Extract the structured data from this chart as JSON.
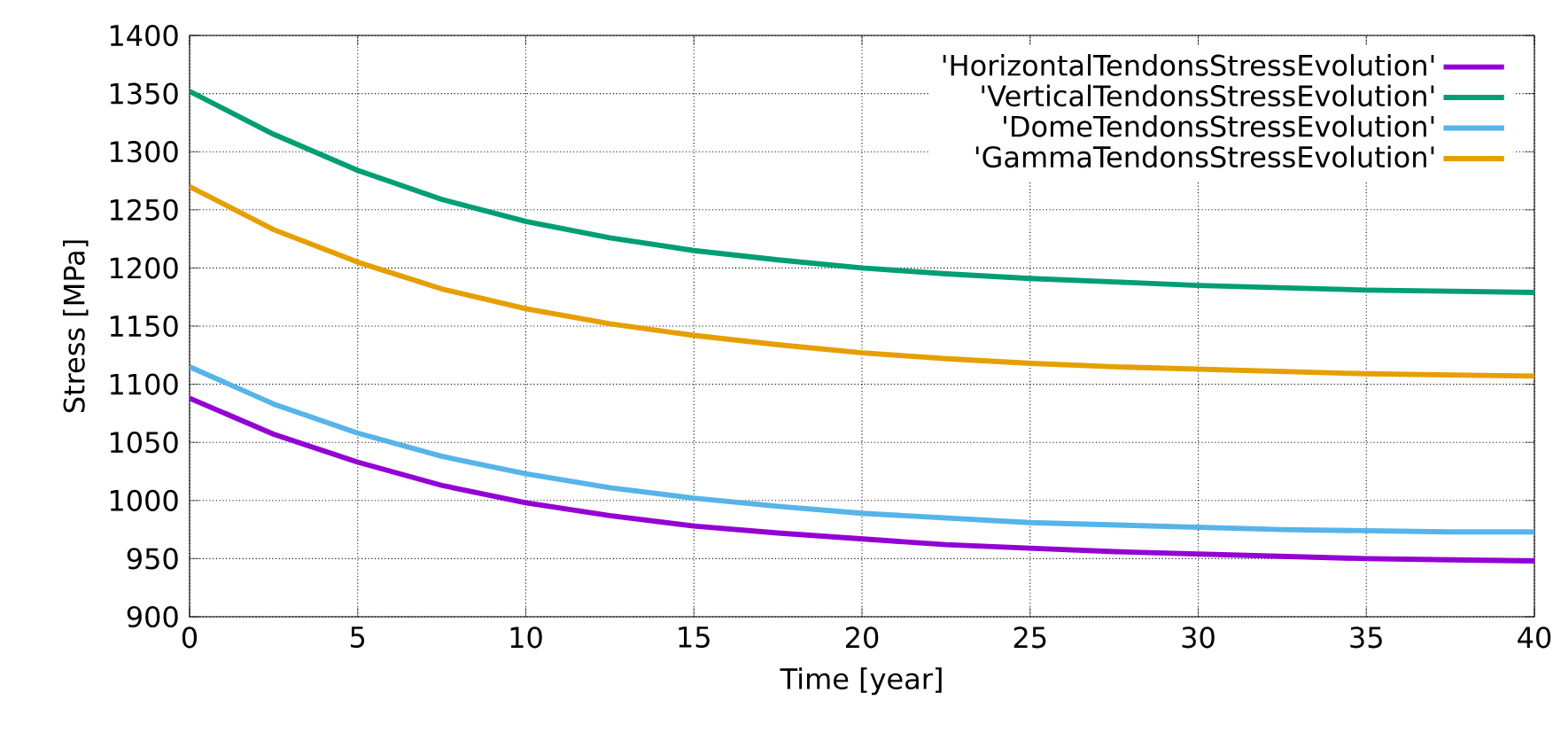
{
  "chart_data": {
    "type": "line",
    "xlabel": "Time [year]",
    "ylabel": "Stress [MPa]",
    "x": [
      0,
      2.5,
      5,
      7.5,
      10,
      12.5,
      15,
      17.5,
      20,
      22.5,
      25,
      27.5,
      30,
      32.5,
      35,
      37.5,
      40
    ],
    "series": [
      {
        "name": "'HorizontalTendonsStressEvolution'",
        "color": "#9400d3",
        "values": [
          1088,
          1057,
          1033,
          1013,
          998,
          987,
          978,
          972,
          967,
          962,
          959,
          956,
          954,
          952,
          950,
          949,
          948
        ]
      },
      {
        "name": "'VerticalTendonsStressEvolution'",
        "color": "#009e73",
        "values": [
          1352,
          1315,
          1284,
          1259,
          1240,
          1226,
          1215,
          1207,
          1200,
          1195,
          1191,
          1188,
          1185,
          1183,
          1181,
          1180,
          1179
        ]
      },
      {
        "name": "'DomeTendonsStressEvolution'",
        "color": "#56b4e9",
        "values": [
          1115,
          1083,
          1058,
          1038,
          1023,
          1011,
          1002,
          995,
          989,
          985,
          981,
          979,
          977,
          975,
          974,
          973,
          973
        ]
      },
      {
        "name": "'GammaTendonsStressEvolution'",
        "color": "#e69f00",
        "values": [
          1270,
          1233,
          1205,
          1182,
          1165,
          1152,
          1142,
          1134,
          1127,
          1122,
          1118,
          1115,
          1113,
          1111,
          1109,
          1108,
          1107
        ]
      }
    ],
    "xlim": [
      0,
      40
    ],
    "ylim": [
      900,
      1400
    ],
    "xticks": [
      0,
      5,
      10,
      15,
      20,
      25,
      30,
      35,
      40
    ],
    "yticks": [
      900,
      950,
      1000,
      1050,
      1100,
      1150,
      1200,
      1250,
      1300,
      1350,
      1400
    ],
    "grid": true,
    "legend": "top right",
    "marker": "none",
    "line_style": "solid"
  }
}
